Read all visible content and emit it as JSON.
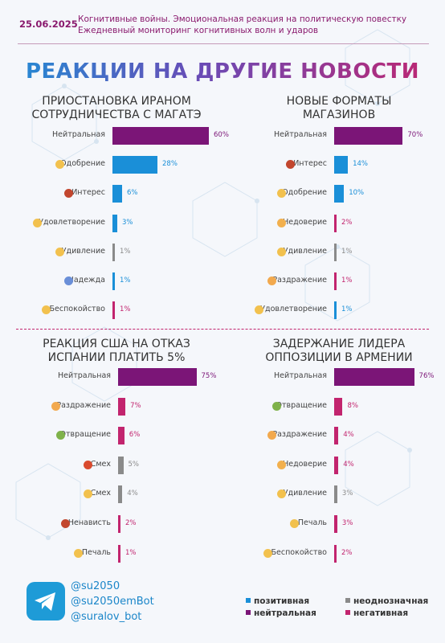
{
  "header": {
    "date": "25.06.2025",
    "line1": "Когнитивные войны. Эмоциональная реакция на политическую повестку",
    "line2": "Ежедневный мониторинг когнитивных волн и ударов"
  },
  "title": "РЕАКЦИИ НА ДРУГИЕ НОВОСТИ",
  "colors": {
    "positive": "#1a8fd8",
    "neutral": "#7b1577",
    "ambiguous": "#8a8a8a",
    "negative": "#c2246e"
  },
  "chart_data": [
    {
      "type": "bar",
      "title_lines": [
        "ПРИОСТАНОВКА ИРАНОМ",
        "СОТРУДНИЧЕСТВА С МАГАТЭ"
      ],
      "categories": [
        "Нейтральная",
        "Одобрение",
        "Интерес",
        "Удовлетворение",
        "Удивление",
        "Надежда",
        "Беспокойство"
      ],
      "values": [
        60,
        28,
        6,
        3,
        1,
        1,
        1
      ],
      "labels": [
        "60%",
        "28%",
        "6%",
        "3%",
        "1%",
        "1%",
        "1%"
      ],
      "groups": [
        "neutral",
        "positive",
        "positive",
        "positive",
        "ambiguous",
        "positive",
        "negative"
      ],
      "icons": [
        "",
        "approval-icon",
        "interest-icon",
        "satisfaction-icon",
        "surprise-icon",
        "hope-icon",
        "worry-icon"
      ]
    },
    {
      "type": "bar",
      "title_lines": [
        "НОВЫЕ ФОРМАТЫ",
        "МАГАЗИНОВ"
      ],
      "categories": [
        "Нейтральная",
        "Интерес",
        "Одобрение",
        "Недоверие",
        "Удивление",
        "Раздражение",
        "Удовлетворение"
      ],
      "values": [
        70,
        14,
        10,
        2,
        1,
        1,
        1
      ],
      "labels": [
        "70%",
        "14%",
        "10%",
        "2%",
        "1%",
        "1%",
        "1%"
      ],
      "groups": [
        "neutral",
        "positive",
        "positive",
        "negative",
        "ambiguous",
        "negative",
        "positive"
      ],
      "icons": [
        "",
        "interest-icon",
        "approval-icon",
        "distrust-icon",
        "surprise-icon",
        "irritation-icon",
        "satisfaction-icon"
      ]
    },
    {
      "type": "bar",
      "title_lines": [
        "РЕАКЦИЯ США НА ОТКАЗ",
        "ИСПАНИИ ПЛАТИТЬ 5%"
      ],
      "categories": [
        "Нейтральная",
        "Раздражение",
        "Отвращение",
        "Смех",
        "Смех",
        "Ненависть",
        "Печаль"
      ],
      "values": [
        75,
        7,
        6,
        5,
        4,
        2,
        1
      ],
      "labels": [
        "75%",
        "7%",
        "6%",
        "5%",
        "4%",
        "2%",
        "1%"
      ],
      "groups": [
        "neutral",
        "negative",
        "negative",
        "ambiguous",
        "ambiguous",
        "negative",
        "negative"
      ],
      "icons": [
        "",
        "irritation-icon",
        "disgust-icon",
        "evil-laugh-icon",
        "laugh-icon",
        "hate-icon",
        "sadness-icon"
      ]
    },
    {
      "type": "bar",
      "title_lines": [
        "ЗАДЕРЖАНИЕ ЛИДЕРА",
        "ОППОЗИЦИИ В АРМЕНИИ"
      ],
      "categories": [
        "Нейтральная",
        "Отвращение",
        "Раздражение",
        "Недоверие",
        "Удивление",
        "Печаль",
        "Беспокойство"
      ],
      "values": [
        76,
        8,
        4,
        4,
        3,
        3,
        2
      ],
      "labels": [
        "76%",
        "8%",
        "4%",
        "4%",
        "3%",
        "3%",
        "2%"
      ],
      "groups": [
        "neutral",
        "negative",
        "negative",
        "negative",
        "ambiguous",
        "negative",
        "negative"
      ],
      "icons": [
        "",
        "disgust-icon",
        "irritation-icon",
        "distrust-icon",
        "surprise-icon",
        "sadness-icon",
        "worry-icon"
      ]
    }
  ],
  "footer": {
    "handles": [
      "@su2050",
      "@su2050emBot",
      "@suralov_bot"
    ],
    "legend": [
      {
        "label": "позитивная",
        "group": "positive"
      },
      {
        "label": "неоднозначная",
        "group": "ambiguous"
      },
      {
        "label": "нейтральная",
        "group": "neutral"
      },
      {
        "label": "негативная",
        "group": "negative"
      }
    ]
  }
}
